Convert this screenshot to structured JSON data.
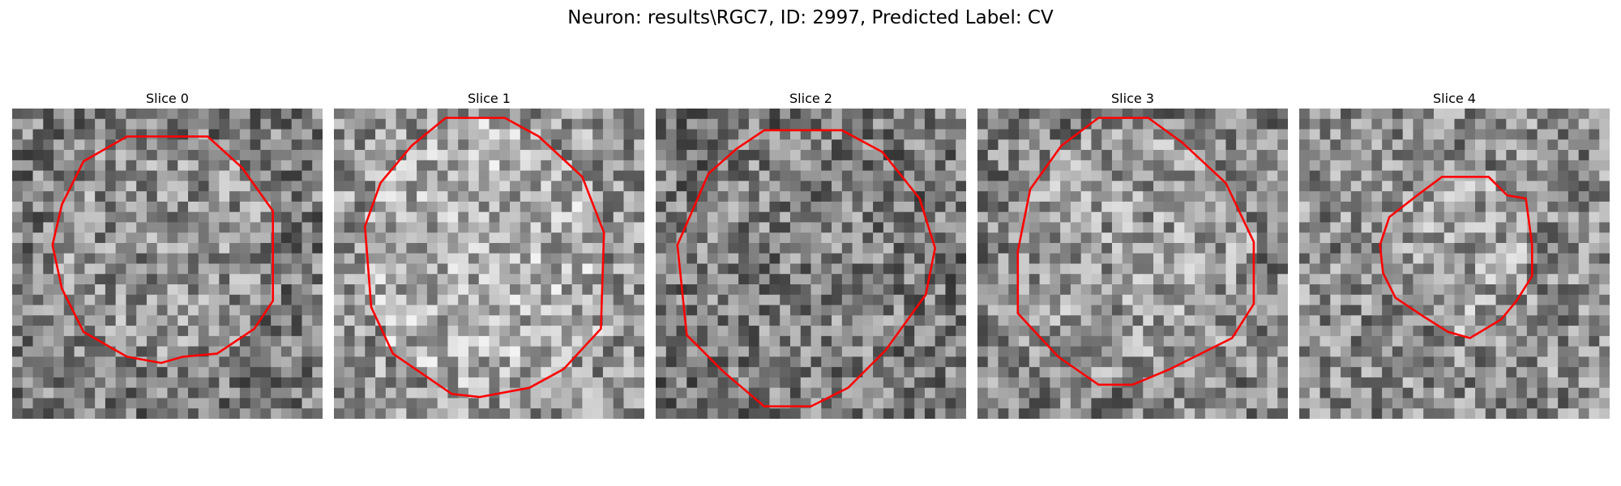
{
  "figure": {
    "title": "Neuron: results\\RGC7, ID: 2997, Predicted Label: CV"
  },
  "contour_color": "#ff0000",
  "panels": [
    {
      "title": "Slice 0",
      "seed": 11,
      "brightness": 0.52,
      "inner_bias": 0.04,
      "contour": [
        [
          0.37,
          0.09
        ],
        [
          0.63,
          0.09
        ],
        [
          0.74,
          0.19
        ],
        [
          0.84,
          0.33
        ],
        [
          0.84,
          0.62
        ],
        [
          0.78,
          0.71
        ],
        [
          0.66,
          0.79
        ],
        [
          0.55,
          0.8
        ],
        [
          0.48,
          0.82
        ],
        [
          0.37,
          0.8
        ],
        [
          0.23,
          0.72
        ],
        [
          0.16,
          0.58
        ],
        [
          0.13,
          0.44
        ],
        [
          0.16,
          0.31
        ],
        [
          0.23,
          0.17
        ]
      ]
    },
    {
      "title": "Slice 1",
      "seed": 23,
      "brightness": 0.62,
      "inner_bias": 0.06,
      "contour": [
        [
          0.36,
          0.03
        ],
        [
          0.55,
          0.03
        ],
        [
          0.66,
          0.09
        ],
        [
          0.8,
          0.22
        ],
        [
          0.87,
          0.4
        ],
        [
          0.86,
          0.71
        ],
        [
          0.74,
          0.84
        ],
        [
          0.63,
          0.9
        ],
        [
          0.47,
          0.93
        ],
        [
          0.38,
          0.92
        ],
        [
          0.19,
          0.79
        ],
        [
          0.12,
          0.64
        ],
        [
          0.1,
          0.38
        ],
        [
          0.15,
          0.24
        ],
        [
          0.25,
          0.12
        ]
      ]
    },
    {
      "title": "Slice 2",
      "seed": 37,
      "brightness": 0.5,
      "inner_bias": 0.0,
      "contour": [
        [
          0.35,
          0.07
        ],
        [
          0.6,
          0.07
        ],
        [
          0.73,
          0.14
        ],
        [
          0.85,
          0.29
        ],
        [
          0.9,
          0.45
        ],
        [
          0.87,
          0.6
        ],
        [
          0.74,
          0.78
        ],
        [
          0.62,
          0.9
        ],
        [
          0.5,
          0.96
        ],
        [
          0.35,
          0.96
        ],
        [
          0.22,
          0.85
        ],
        [
          0.1,
          0.73
        ],
        [
          0.07,
          0.44
        ],
        [
          0.17,
          0.21
        ],
        [
          0.26,
          0.13
        ]
      ]
    },
    {
      "title": "Slice 3",
      "seed": 49,
      "brightness": 0.55,
      "inner_bias": 0.05,
      "contour": [
        [
          0.39,
          0.03
        ],
        [
          0.55,
          0.03
        ],
        [
          0.66,
          0.11
        ],
        [
          0.8,
          0.24
        ],
        [
          0.89,
          0.43
        ],
        [
          0.89,
          0.63
        ],
        [
          0.82,
          0.74
        ],
        [
          0.62,
          0.84
        ],
        [
          0.5,
          0.89
        ],
        [
          0.39,
          0.89
        ],
        [
          0.26,
          0.8
        ],
        [
          0.13,
          0.66
        ],
        [
          0.13,
          0.46
        ],
        [
          0.17,
          0.26
        ],
        [
          0.27,
          0.12
        ]
      ]
    },
    {
      "title": "Slice 4",
      "seed": 61,
      "brightness": 0.58,
      "inner_bias": 0.05,
      "contour": [
        [
          0.46,
          0.22
        ],
        [
          0.61,
          0.22
        ],
        [
          0.67,
          0.28
        ],
        [
          0.73,
          0.29
        ],
        [
          0.75,
          0.44
        ],
        [
          0.75,
          0.54
        ],
        [
          0.7,
          0.62
        ],
        [
          0.65,
          0.68
        ],
        [
          0.55,
          0.74
        ],
        [
          0.48,
          0.72
        ],
        [
          0.4,
          0.67
        ],
        [
          0.31,
          0.61
        ],
        [
          0.27,
          0.53
        ],
        [
          0.26,
          0.44
        ],
        [
          0.29,
          0.35
        ],
        [
          0.38,
          0.28
        ]
      ]
    }
  ]
}
